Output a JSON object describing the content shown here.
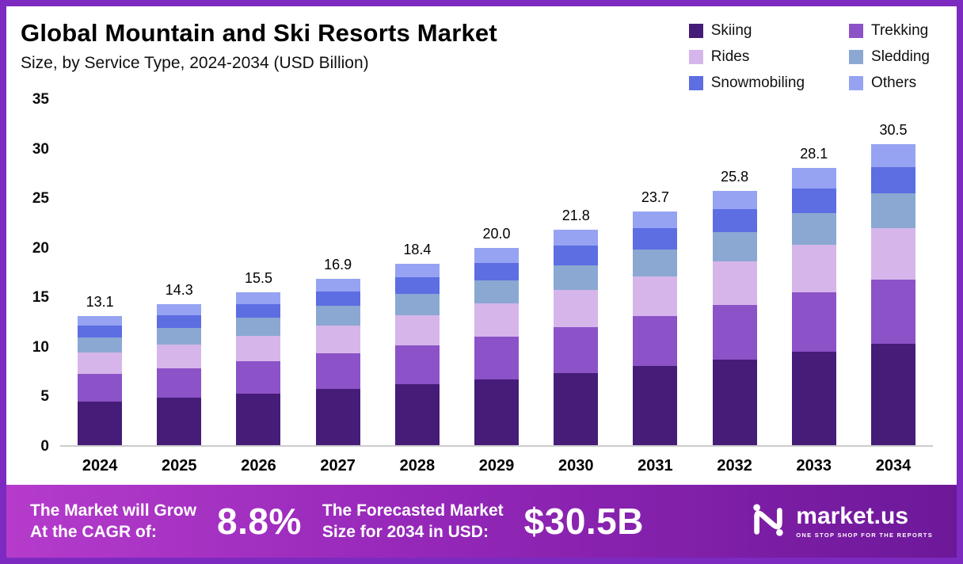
{
  "header": {
    "title": "Global Mountain and Ski Resorts Market",
    "subtitle": "Size, by Service Type, 2024-2034 (USD Billion)"
  },
  "legend": [
    {
      "label": "Skiing",
      "color": "#451c78"
    },
    {
      "label": "Trekking",
      "color": "#8c52c7"
    },
    {
      "label": "Rides",
      "color": "#d6b6ea"
    },
    {
      "label": "Sledding",
      "color": "#8aa8d2"
    },
    {
      "label": "Snowmobiling",
      "color": "#5d6de2"
    },
    {
      "label": "Others",
      "color": "#96a3f2"
    }
  ],
  "chart_data": {
    "type": "bar",
    "stacked": true,
    "title": "Global Mountain and Ski Resorts Market Size, by Service Type, 2024-2034 (USD Billion)",
    "xlabel": "",
    "ylabel": "",
    "ylim": [
      0,
      35
    ],
    "yticks": [
      0,
      5,
      10,
      15,
      20,
      25,
      30,
      35
    ],
    "grid": false,
    "legend_position": "top-right",
    "categories": [
      "2024",
      "2025",
      "2026",
      "2027",
      "2028",
      "2029",
      "2030",
      "2031",
      "2032",
      "2033",
      "2034"
    ],
    "series": [
      {
        "name": "Skiing",
        "color": "#451c78",
        "values": [
          4.4,
          4.8,
          5.2,
          5.7,
          6.2,
          6.7,
          7.3,
          8.0,
          8.7,
          9.5,
          10.3
        ]
      },
      {
        "name": "Trekking",
        "color": "#8c52c7",
        "values": [
          2.8,
          3.0,
          3.3,
          3.6,
          3.9,
          4.3,
          4.7,
          5.1,
          5.5,
          6.0,
          6.5
        ]
      },
      {
        "name": "Rides",
        "color": "#d6b6ea",
        "values": [
          2.2,
          2.4,
          2.6,
          2.85,
          3.1,
          3.4,
          3.7,
          4.0,
          4.4,
          4.8,
          5.2
        ]
      },
      {
        "name": "Sledding",
        "color": "#8aa8d2",
        "values": [
          1.5,
          1.65,
          1.8,
          1.95,
          2.1,
          2.3,
          2.5,
          2.7,
          3.0,
          3.2,
          3.5
        ]
      },
      {
        "name": "Snowmobiling",
        "color": "#5d6de2",
        "values": [
          1.2,
          1.3,
          1.4,
          1.5,
          1.7,
          1.8,
          2.0,
          2.2,
          2.3,
          2.5,
          2.7
        ]
      },
      {
        "name": "Others",
        "color": "#96a3f2",
        "values": [
          1.0,
          1.15,
          1.2,
          1.3,
          1.4,
          1.5,
          1.6,
          1.7,
          1.9,
          2.1,
          2.3
        ]
      }
    ],
    "totals": [
      "13.1",
      "14.3",
      "15.5",
      "16.9",
      "18.4",
      "20.0",
      "21.8",
      "23.7",
      "25.8",
      "28.1",
      "30.5"
    ]
  },
  "footer": {
    "cagr_label_line1": "The Market will Grow",
    "cagr_label_line2": "At the CAGR of:",
    "cagr_value": "8.8%",
    "forecast_label_line1": "The Forecasted Market",
    "forecast_label_line2": "Size for 2034 in USD:",
    "forecast_value": "$30.5B",
    "brand_name": "market.us",
    "brand_tagline": "ONE STOP SHOP FOR THE REPORTS"
  },
  "colors": {
    "page_border": "#7c2abf",
    "banner_gradient": [
      "#b53bcb",
      "#9427b8",
      "#6d1899"
    ],
    "axis_line": "#cccccc"
  }
}
